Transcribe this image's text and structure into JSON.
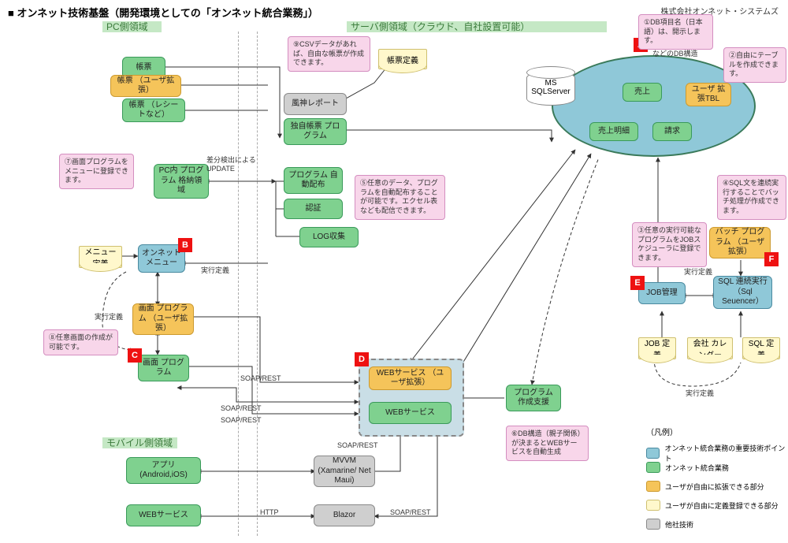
{
  "title": "■ オンネット技術基盤（開発環境としての「オンネット統合業務」）",
  "company": "株式会社オンネット・システムズ",
  "zones": {
    "pc": "PC側領域",
    "server": "サーバ側領域（クラウド、自社設置可能）",
    "mobile": "モバイル側領域"
  },
  "colors": {
    "blue_fill": "#8fc8d8",
    "blue_border": "#4a8aa0",
    "green_fill": "#7fd18f",
    "green_border": "#3a9a5a",
    "orange_fill": "#f5c45a",
    "orange_border": "#cc9a30",
    "yellow_fill": "#fff8cc",
    "yellow_border": "#cfc070",
    "gray_fill": "#cfcfcf",
    "gray_border": "#8a8a8a",
    "pink_fill": "#f8d6ea",
    "pink_border": "#d48ec0",
    "red": "#e11",
    "zone_green": "#3a7a3a",
    "section_band": "#c5e8c5"
  },
  "db": {
    "header": "販売・購買・在庫\nなどのDB構造",
    "ms": "MS\nSQLServer",
    "tables": {
      "sales": "売上",
      "sales_detail": "売上明細",
      "invoice": "請求",
      "user_ext": "ユーザ\n拡張TBL"
    }
  },
  "nodes": {
    "report1": "帳票",
    "report_user": "帳票\n（ユーザ拡張）",
    "report_receipt": "帳票\n（レシートなど）",
    "fuujin": "風神レポート",
    "own_report": "独自帳票\nプログラム",
    "report_def": "帳票定義",
    "csv_note": "⑨CSVデータがあれば、自由な帳票が作成できます。",
    "pc_store": "PC内\nプログラム\n格納領域",
    "auto_dist": "プログラム\n自動配布",
    "auth": "認証",
    "log": "LOG収集",
    "menu_def": "メニュー\n定義",
    "onnet_menu": "オンネット\nメニュー",
    "screen_user": "画面\nプログラム\n（ユーザ拡張）",
    "screen_prog": "画面\nプログラム",
    "diff_update": "差分検出による\nUPDATE",
    "exec_def": "実行定義",
    "web_user": "WEBサービス\n（ユーザ拡張）",
    "web_svc": "WEBサービス",
    "prog_support": "プログラム\n作成支援",
    "job_mgmt": "JOB管理",
    "batch_user": "バッチ\nプログラム\n（ユーザ拡張）",
    "sql_seq": "SQL\n連続実行\n（Sql Seuencer）",
    "job_def": "JOB\n定義",
    "calendar": "会社\nカレンダー",
    "sql_def": "SQL\n定義",
    "app": "アプリ\n(Android,iOS)",
    "mvvm": "MVVM\n(Xamarine/\nNet Maui)",
    "web_svc_m": "WEBサービス",
    "blazor": "Blazor"
  },
  "callouts": {
    "c1": "①DB項目名（日本語）は、開示します。",
    "c2": "②自由にテーブルを作成できます。",
    "c3": "③任意の実行可能なプログラムをJOBスケジューラに登録できます。",
    "c4": "④SQL文を連続実行することでバッチ処理が作成できます。",
    "c5": "⑤任意のデータ、プログラムを自動配布することが可能です。エクセル表なども配信できます。",
    "c6": "⑥DB構造（親子関係）が決まるとWEBサービスを自動生成",
    "c7": "⑦画面プログラムをメニューに登録できます。",
    "c8": "⑧任意画面の作成が可能です。"
  },
  "labels": {
    "soap": "SOAP/REST",
    "http": "HTTP",
    "exec_def": "実行定義"
  },
  "badges": {
    "A": "A",
    "B": "B",
    "C": "C",
    "D": "D",
    "E": "E",
    "F": "F"
  },
  "legend": {
    "title": "（凡例）",
    "items": [
      {
        "text": "オンネット統合業務の重要技術ポイント",
        "fill": "#8fc8d8",
        "border": "#4a8aa0"
      },
      {
        "text": "オンネット統合業務",
        "fill": "#7fd18f",
        "border": "#3a9a5a"
      },
      {
        "text": "ユーザが自由に拡張できる部分",
        "fill": "#f5c45a",
        "border": "#cc9a30"
      },
      {
        "text": "ユーザが自由に定義登録できる部分",
        "fill": "#fff8cc",
        "border": "#cfc070"
      },
      {
        "text": "他社技術",
        "fill": "#cfcfcf",
        "border": "#8a8a8a"
      }
    ]
  }
}
